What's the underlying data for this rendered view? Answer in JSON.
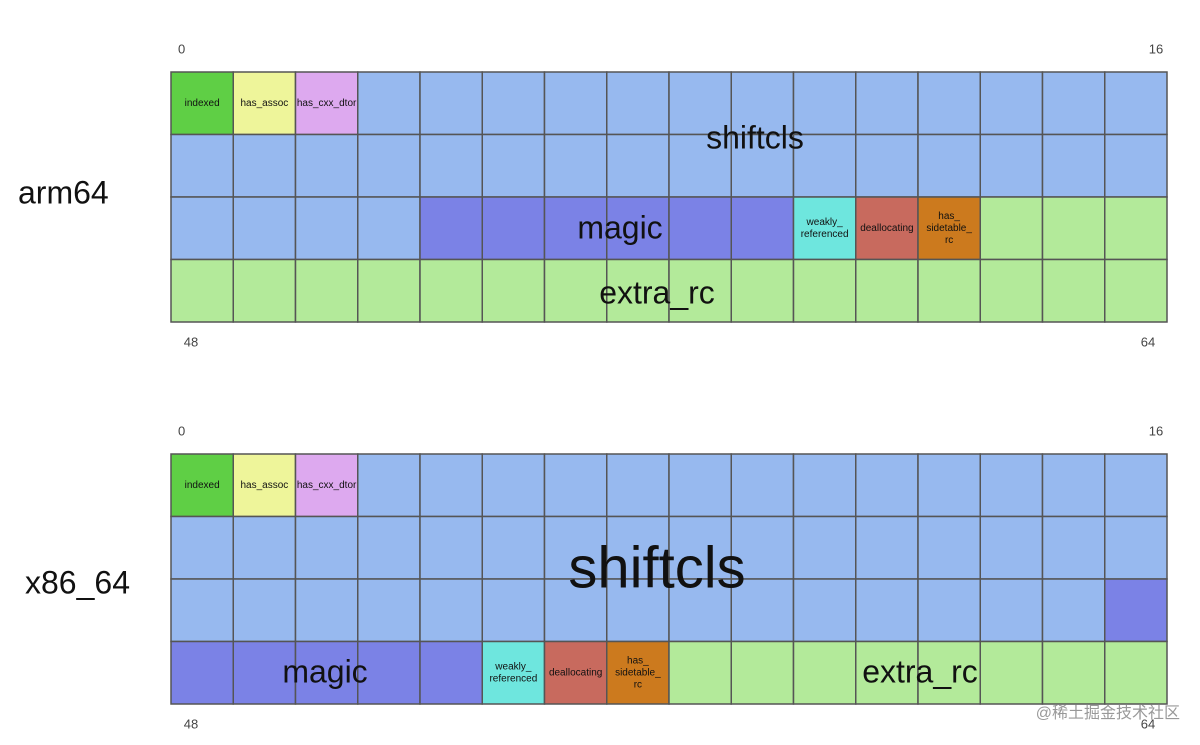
{
  "diagrams": [
    {
      "arch": "arm64",
      "bit_labels": {
        "top_left": "0",
        "top_right": "16",
        "bottom_left": "48",
        "bottom_right": "64"
      },
      "fields": [
        {
          "label": [
            "indexed"
          ]
        },
        {
          "label": [
            "has_assoc"
          ]
        },
        {
          "label": [
            "has_cxx_dtor"
          ]
        },
        {
          "label": [
            "shiftcls"
          ]
        },
        {
          "label": [
            "magic"
          ]
        },
        {
          "label": [
            "weakly_",
            "referenced"
          ]
        },
        {
          "label": [
            "deallocating"
          ]
        },
        {
          "label": [
            "has_",
            "sidetable_",
            "rc"
          ]
        },
        {
          "label": [
            "extra_rc"
          ]
        }
      ]
    },
    {
      "arch": "x86_64",
      "bit_labels": {
        "top_left": "0",
        "top_right": "16",
        "bottom_left": "48",
        "bottom_right": "64"
      },
      "fields": [
        {
          "label": [
            "indexed"
          ]
        },
        {
          "label": [
            "has_assoc"
          ]
        },
        {
          "label": [
            "has_cxx_dtor"
          ]
        },
        {
          "label": [
            "shiftcls"
          ]
        },
        {
          "label": [
            "magic"
          ]
        },
        {
          "label": [
            "weakly_",
            "referenced"
          ]
        },
        {
          "label": [
            "deallocating"
          ]
        },
        {
          "label": [
            "has_",
            "sidetable_",
            "rc"
          ]
        },
        {
          "label": [
            "extra_rc"
          ]
        }
      ]
    }
  ],
  "watermark": "@稀土掘金技术社区"
}
